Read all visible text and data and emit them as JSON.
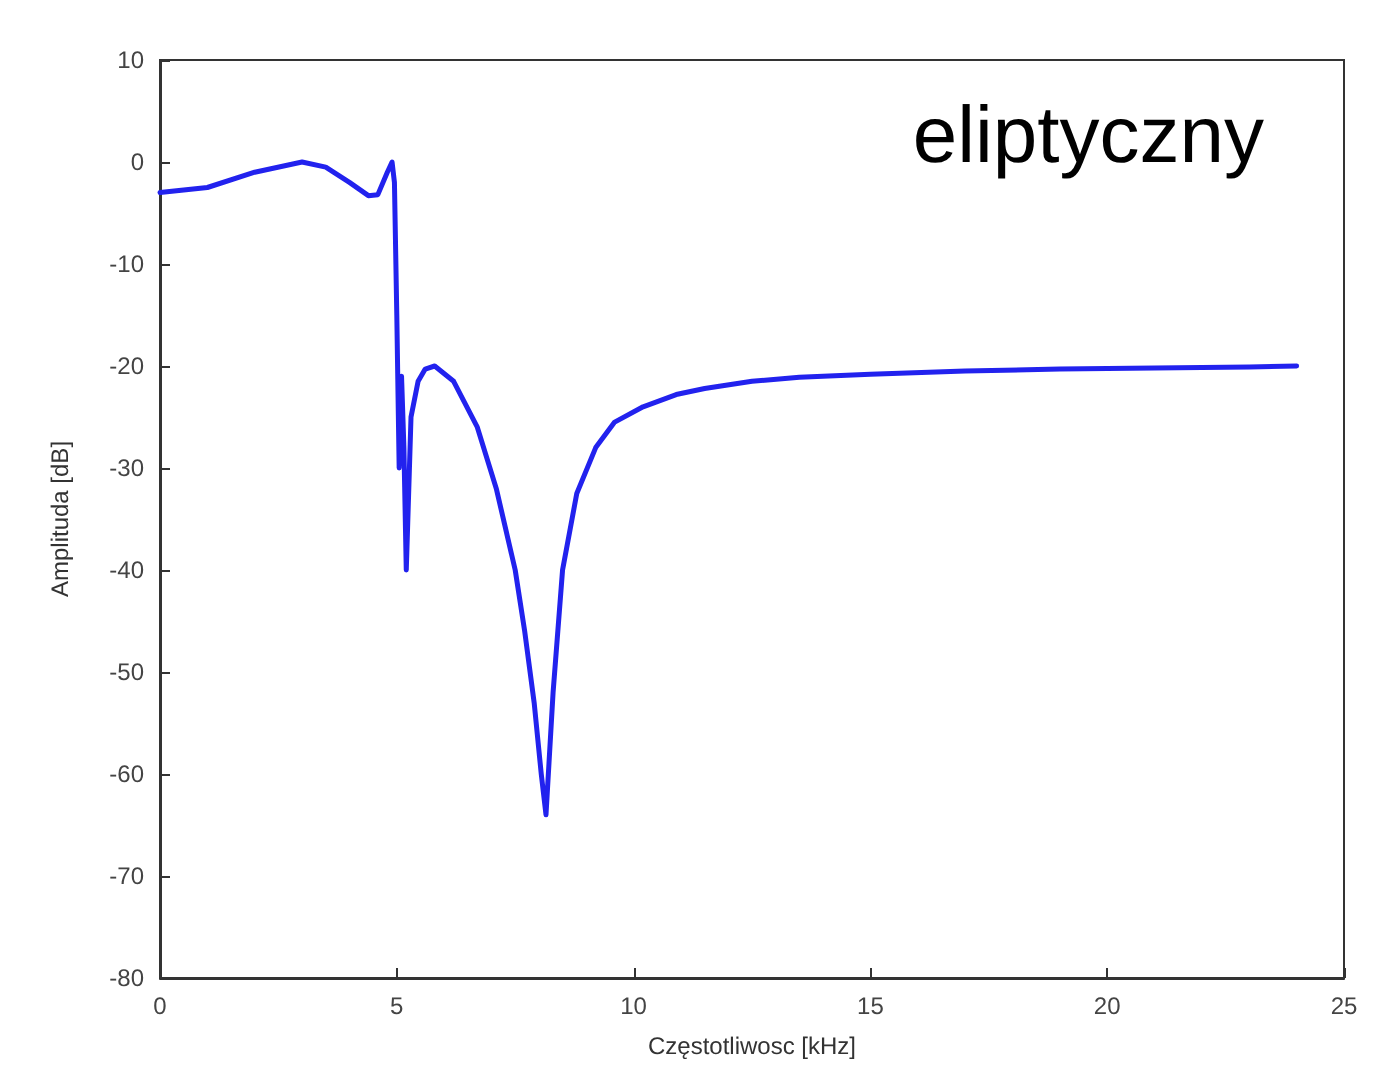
{
  "chart_data": {
    "type": "line",
    "xlabel": "Częstotliwosc [kHz]",
    "ylabel": "Amplituda [dB]",
    "annotations": [
      "eliptyczny"
    ],
    "xlim": [
      0,
      25
    ],
    "xticks": [
      0,
      5,
      10,
      15,
      20,
      25
    ],
    "ylim": [
      -80,
      10
    ],
    "yticks": [
      -80,
      -70,
      -60,
      -50,
      -40,
      -30,
      -20,
      -10,
      0,
      10
    ],
    "grid": false,
    "marker": "none",
    "line_style": "solid",
    "series": [
      {
        "color": "#2222ee",
        "x": [
          0,
          1,
          2,
          3,
          3.5,
          4,
          4.4,
          4.6,
          4.8,
          4.9,
          4.95,
          5.0,
          5.05,
          5.1,
          5.15,
          5.2,
          5.3,
          5.45,
          5.6,
          5.8,
          6.2,
          6.7,
          7.1,
          7.5,
          7.7,
          7.9,
          8.05,
          8.15,
          8.3,
          8.5,
          8.8,
          9.2,
          9.6,
          10.2,
          10.9,
          11.5,
          12.5,
          13.5,
          15,
          17,
          19,
          21,
          23,
          24
        ],
        "values": [
          -3,
          -2.5,
          -1,
          0,
          -0.5,
          -2,
          -3.3,
          -3.2,
          -1,
          0,
          -2,
          -15,
          -30,
          -21,
          -28,
          -40,
          -25,
          -21.5,
          -20.3,
          -20,
          -21.5,
          -26,
          -32,
          -40,
          -46,
          -53,
          -60,
          -64,
          -52,
          -40,
          -32.5,
          -28,
          -25.5,
          -24,
          -22.8,
          -22.2,
          -21.5,
          -21.1,
          -20.8,
          -20.5,
          -20.3,
          -20.2,
          -20.1,
          -20
        ]
      }
    ]
  }
}
